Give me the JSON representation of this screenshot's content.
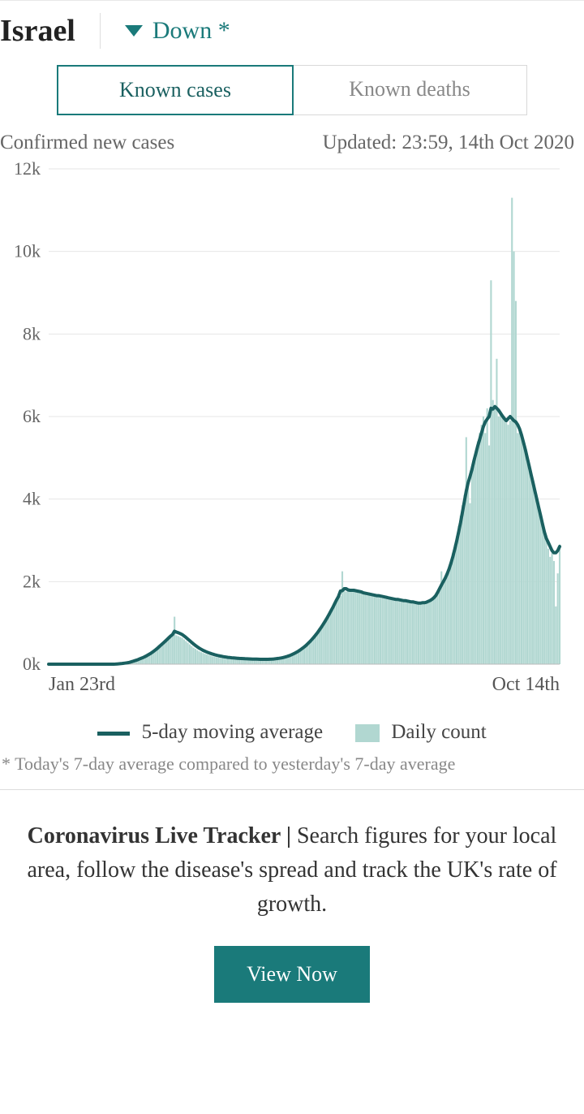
{
  "header": {
    "country": "Israel",
    "trend_label": "Down *",
    "trend_direction": "down",
    "trend_color": "#1a7a7a"
  },
  "tabs": {
    "active": "Known cases",
    "inactive": "Known deaths"
  },
  "subheader": {
    "left": "Confirmed new cases",
    "right": "Updated: 23:59, 14th Oct 2020"
  },
  "chart": {
    "type": "area-bar-line",
    "y": {
      "min": 0,
      "max": 12000,
      "ticks": [
        0,
        2000,
        4000,
        6000,
        8000,
        10000,
        12000
      ],
      "tick_labels": [
        "0k",
        "2k",
        "4k",
        "6k",
        "8k",
        "10k",
        "12k"
      ]
    },
    "x": {
      "start_label": "Jan 23rd",
      "end_label": "Oct 14th",
      "n_points": 265
    },
    "colors": {
      "bar_fill": "#b1d7d1",
      "line": "#1a6060",
      "grid": "#e6e6e6",
      "axis_text": "#666666",
      "background": "#ffffff"
    },
    "line_width": 4,
    "daily": [
      0,
      0,
      0,
      0,
      0,
      0,
      0,
      0,
      0,
      0,
      0,
      0,
      0,
      0,
      0,
      0,
      0,
      0,
      0,
      0,
      0,
      0,
      0,
      0,
      0,
      0,
      0,
      0,
      0,
      0,
      0,
      0,
      0,
      0,
      0,
      0,
      5,
      8,
      12,
      18,
      25,
      30,
      40,
      55,
      70,
      85,
      100,
      120,
      140,
      160,
      180,
      200,
      230,
      260,
      290,
      320,
      360,
      400,
      440,
      480,
      520,
      560,
      600,
      640,
      680,
      720,
      1150,
      700,
      680,
      660,
      640,
      600,
      560,
      520,
      480,
      440,
      400,
      370,
      340,
      310,
      290,
      270,
      250,
      235,
      220,
      205,
      190,
      180,
      170,
      160,
      150,
      145,
      140,
      135,
      130,
      128,
      126,
      124,
      122,
      120,
      118,
      117,
      116,
      115,
      114,
      113,
      112,
      111,
      110,
      110,
      110,
      110,
      110,
      110,
      112,
      114,
      118,
      122,
      128,
      134,
      142,
      150,
      160,
      172,
      186,
      200,
      218,
      238,
      260,
      285,
      312,
      342,
      375,
      410,
      450,
      492,
      538,
      586,
      638,
      692,
      750,
      810,
      875,
      942,
      1012,
      1086,
      1162,
      1242,
      1324,
      1410,
      1498,
      1590,
      1700,
      1650,
      2250,
      1800,
      1760,
      1830,
      1780,
      1750,
      1830,
      1780,
      1740,
      1720,
      1760,
      1700,
      1690,
      1670,
      1740,
      1680,
      1650,
      1640,
      1690,
      1630,
      1610,
      1600,
      1650,
      1590,
      1570,
      1600,
      1560,
      1550,
      1530,
      1580,
      1540,
      1520,
      1500,
      1550,
      1510,
      1490,
      1520,
      1480,
      1460,
      1490,
      1470,
      1450,
      1480,
      1500,
      1510,
      1540,
      1570,
      1600,
      1650,
      1700,
      1780,
      1860,
      2250,
      1950,
      2100,
      2200,
      2350,
      2500,
      2700,
      2900,
      3100,
      3350,
      3600,
      3850,
      4100,
      5500,
      4400,
      3900,
      4800,
      5000,
      5200,
      5400,
      5600,
      5800,
      6000,
      5600,
      6200,
      5300,
      9300,
      6400,
      6200,
      7400,
      6000,
      6100,
      6000,
      5950,
      5850,
      5800,
      5900,
      11300,
      10000,
      8800,
      5600,
      5700,
      5500,
      5400,
      5200,
      5000,
      4800,
      4600,
      4400,
      4200,
      4000,
      3800,
      3600,
      3400,
      3200,
      3000,
      2800,
      2600,
      2700,
      2500,
      1400,
      2200,
      2900
    ],
    "avg5": [
      0,
      0,
      0,
      0,
      0,
      0,
      0,
      0,
      0,
      0,
      0,
      0,
      0,
      0,
      0,
      0,
      0,
      0,
      0,
      0,
      0,
      0,
      0,
      0,
      0,
      0,
      0,
      0,
      0,
      0,
      0,
      0,
      0,
      0,
      0,
      1,
      5,
      9,
      13,
      19,
      25,
      32,
      40,
      54,
      67,
      82,
      97,
      115,
      133,
      152,
      172,
      194,
      220,
      248,
      278,
      310,
      346,
      384,
      424,
      466,
      508,
      551,
      595,
      639,
      683,
      720,
      798,
      778,
      762,
      742,
      718,
      684,
      648,
      608,
      568,
      528,
      488,
      453,
      419,
      388,
      360,
      335,
      313,
      294,
      276,
      260,
      244,
      231,
      218,
      207,
      197,
      188,
      180,
      173,
      166,
      161,
      156,
      151,
      147,
      144,
      140,
      137,
      135,
      132,
      130,
      128,
      126,
      124,
      123,
      121,
      120,
      119,
      118,
      118,
      118,
      118,
      120,
      122,
      126,
      131,
      137,
      143,
      152,
      162,
      174,
      187,
      203,
      221,
      241,
      264,
      289,
      317,
      348,
      381,
      418,
      457,
      501,
      547,
      597,
      650,
      707,
      766,
      830,
      897,
      968,
      1043,
      1120,
      1202,
      1286,
      1374,
      1465,
      1560,
      1640,
      1770,
      1780,
      1830,
      1830,
      1800,
      1790,
      1790,
      1790,
      1780,
      1770,
      1760,
      1750,
      1730,
      1720,
      1710,
      1700,
      1690,
      1680,
      1670,
      1660,
      1660,
      1650,
      1640,
      1630,
      1620,
      1610,
      1600,
      1590,
      1580,
      1570,
      1570,
      1560,
      1550,
      1540,
      1540,
      1530,
      1520,
      1510,
      1510,
      1500,
      1490,
      1480,
      1480,
      1490,
      1490,
      1500,
      1520,
      1540,
      1570,
      1610,
      1660,
      1740,
      1830,
      1920,
      2000,
      2090,
      2190,
      2310,
      2450,
      2610,
      2790,
      2990,
      3200,
      3430,
      3680,
      3940,
      4190,
      4400,
      4550,
      4720,
      4920,
      5100,
      5280,
      5440,
      5600,
      5760,
      5870,
      5940,
      6000,
      6200,
      6180,
      6240,
      6200,
      6150,
      6080,
      6010,
      5950,
      5900,
      5950,
      6000,
      5950,
      5900,
      5870,
      5800,
      5700,
      5550,
      5380,
      5200,
      5000,
      4800,
      4600,
      4400,
      4200,
      4000,
      3800,
      3600,
      3400,
      3200,
      3050,
      2950,
      2850,
      2750,
      2700,
      2700,
      2750,
      2850
    ]
  },
  "legend": {
    "line_label": "5-day moving average",
    "bar_label": "Daily count"
  },
  "footnote": "* Today's 7-day average compared to yesterday's 7-day average",
  "promo": {
    "bold": "Coronavirus Live Tracker | ",
    "text": "Search figures for your local area, follow the disease's spread and track the UK's rate of growth.",
    "button": "View Now",
    "button_bg": "#1a7a7a"
  }
}
